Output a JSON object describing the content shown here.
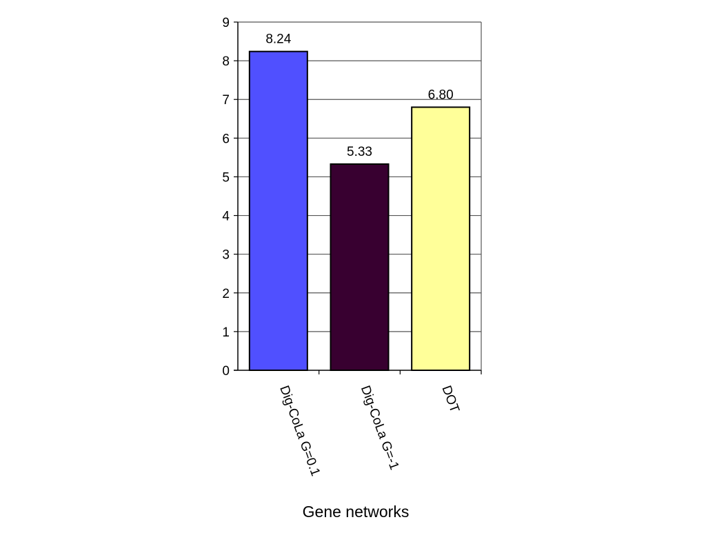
{
  "chart_data": {
    "type": "bar",
    "categories": [
      "Dig-CoLa G=0.1",
      "Dig-CoLa G=-1",
      "DOT"
    ],
    "values": [
      8.24,
      5.33,
      6.8
    ],
    "data_labels": [
      "8.24",
      "5.33",
      "6.80"
    ],
    "colors": [
      "#5050ff",
      "#380030",
      "#ffff99"
    ],
    "title": "",
    "xlabel": "Gene networks",
    "ylabel": "",
    "ylim": [
      0,
      9
    ],
    "yticks": [
      0,
      1,
      2,
      3,
      4,
      5,
      6,
      7,
      8,
      9
    ],
    "grid": true,
    "legend": "none"
  }
}
